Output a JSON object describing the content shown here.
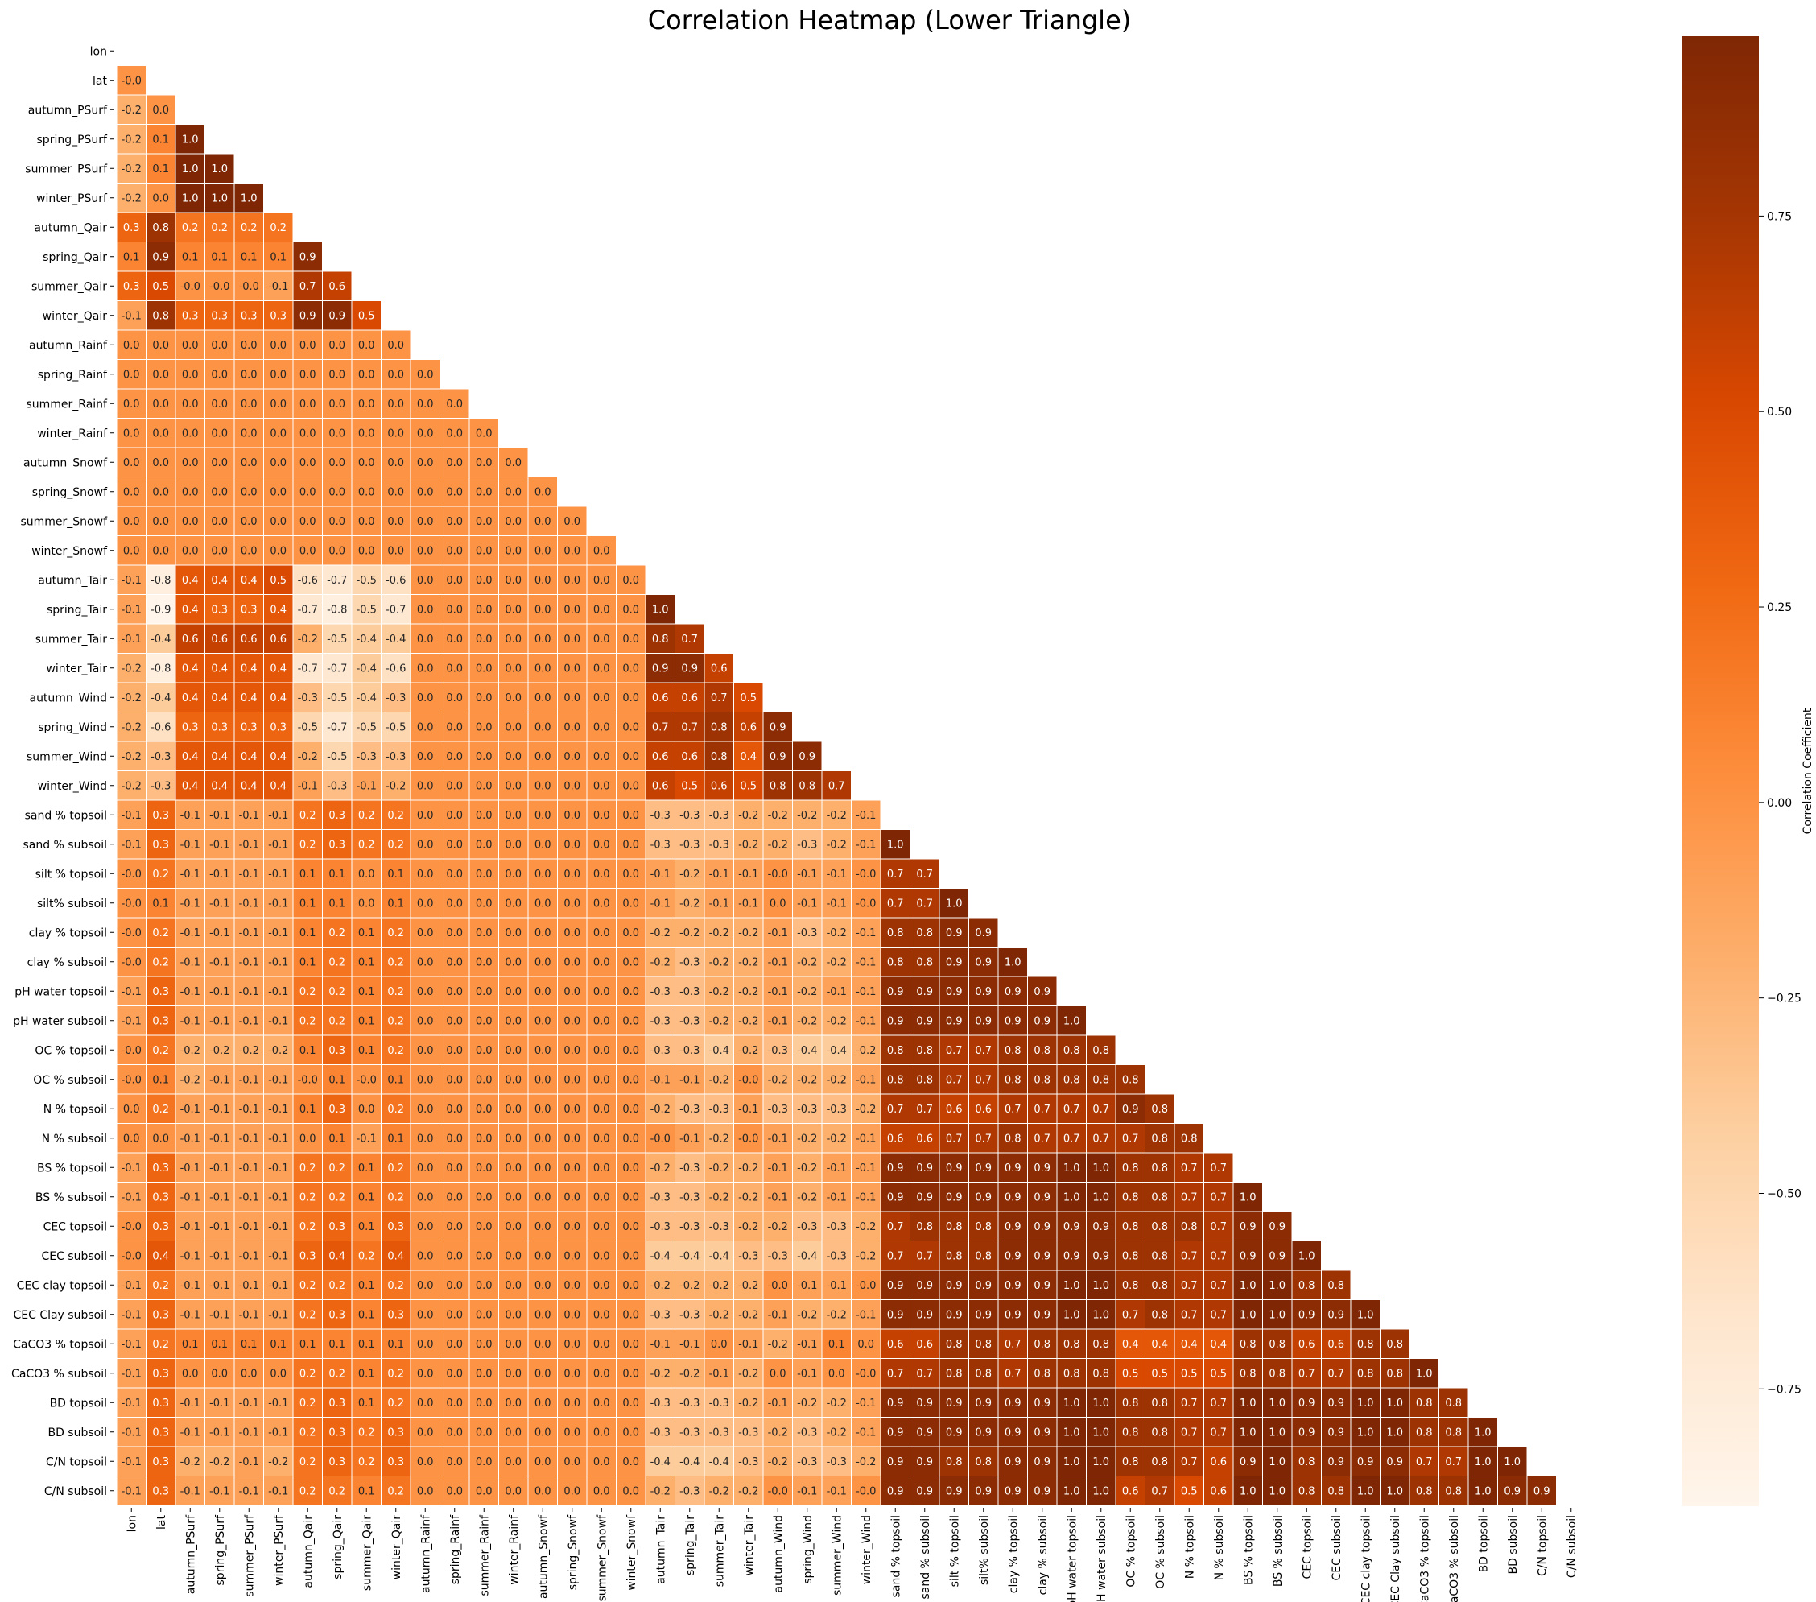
{
  "chart_data": {
    "type": "heatmap",
    "title": "Correlation Heatmap (Lower Triangle)",
    "colorbar_label": "Correlation Coefficient",
    "colorbar_ticks": [
      0.75,
      0.5,
      0.25,
      0.0,
      -0.25,
      -0.5,
      -0.75
    ],
    "colorbar_tick_labels": [
      "0.75",
      "0.50",
      "0.25",
      "0.00",
      "−0.25",
      "−0.50",
      "−0.75"
    ],
    "value_range": [
      -0.9,
      0.98
    ],
    "colormap": "Oranges",
    "mask": "upper triangle including diagonal",
    "grid_line_color": "#ffffff",
    "labels": [
      "lon",
      "lat",
      "autumn_PSurf",
      "spring_PSurf",
      "summer_PSurf",
      "winter_PSurf",
      "autumn_Qair",
      "spring_Qair",
      "summer_Qair",
      "winter_Qair",
      "autumn_Rainf",
      "spring_Rainf",
      "summer_Rainf",
      "winter_Rainf",
      "autumn_Snowf",
      "spring_Snowf",
      "summer_Snowf",
      "winter_Snowf",
      "autumn_Tair",
      "spring_Tair",
      "summer_Tair",
      "winter_Tair",
      "autumn_Wind",
      "spring_Wind",
      "summer_Wind",
      "winter_Wind",
      "sand % topsoil",
      "sand % subsoil",
      "silt % topsoil",
      "silt% subsoil",
      "clay % topsoil",
      "clay % subsoil",
      "pH water topsoil",
      "pH water subsoil",
      "OC % topsoil",
      "OC % subsoil",
      "N % topsoil",
      "N % subsoil",
      "BS % topsoil",
      "BS % subsoil",
      "CEC topsoil",
      "CEC subsoil",
      "CEC clay topsoil",
      "CEC Clay subsoil",
      "CaCO3 % topsoil",
      "CaCO3 % subsoil",
      "BD topsoil",
      "BD subsoil",
      "C/N topsoil",
      "C/N subsoil"
    ],
    "rows": [
      [],
      [
        -0.0
      ],
      [
        -0.2,
        0.0
      ],
      [
        -0.2,
        0.1,
        1.0
      ],
      [
        -0.2,
        0.1,
        1.0,
        1.0
      ],
      [
        -0.2,
        0.0,
        1.0,
        1.0,
        1.0
      ],
      [
        0.3,
        0.8,
        0.2,
        0.2,
        0.2,
        0.2
      ],
      [
        0.1,
        0.9,
        0.1,
        0.1,
        0.1,
        0.1,
        0.9
      ],
      [
        0.3,
        0.5,
        -0.0,
        -0.0,
        -0.0,
        -0.1,
        0.7,
        0.6
      ],
      [
        -0.1,
        0.8,
        0.3,
        0.3,
        0.3,
        0.3,
        0.9,
        0.9,
        0.5
      ],
      [
        0.0,
        0.0,
        0.0,
        0.0,
        0.0,
        0.0,
        0.0,
        0.0,
        0.0,
        0.0
      ],
      [
        0.0,
        0.0,
        0.0,
        0.0,
        0.0,
        0.0,
        0.0,
        0.0,
        0.0,
        0.0,
        0.0
      ],
      [
        0.0,
        0.0,
        0.0,
        0.0,
        0.0,
        0.0,
        0.0,
        0.0,
        0.0,
        0.0,
        0.0,
        0.0
      ],
      [
        0.0,
        0.0,
        0.0,
        0.0,
        0.0,
        0.0,
        0.0,
        0.0,
        0.0,
        0.0,
        0.0,
        0.0,
        0.0
      ],
      [
        0.0,
        0.0,
        0.0,
        0.0,
        0.0,
        0.0,
        0.0,
        0.0,
        0.0,
        0.0,
        0.0,
        0.0,
        0.0,
        0.0
      ],
      [
        0.0,
        0.0,
        0.0,
        0.0,
        0.0,
        0.0,
        0.0,
        0.0,
        0.0,
        0.0,
        0.0,
        0.0,
        0.0,
        0.0,
        0.0
      ],
      [
        0.0,
        0.0,
        0.0,
        0.0,
        0.0,
        0.0,
        0.0,
        0.0,
        0.0,
        0.0,
        0.0,
        0.0,
        0.0,
        0.0,
        0.0,
        0.0
      ],
      [
        0.0,
        0.0,
        0.0,
        0.0,
        0.0,
        0.0,
        0.0,
        0.0,
        0.0,
        0.0,
        0.0,
        0.0,
        0.0,
        0.0,
        0.0,
        0.0,
        0.0
      ],
      [
        -0.1,
        -0.8,
        0.4,
        0.4,
        0.4,
        0.5,
        -0.6,
        -0.7,
        -0.5,
        -0.6,
        0.0,
        0.0,
        0.0,
        0.0,
        0.0,
        0.0,
        0.0,
        0.0
      ],
      [
        -0.1,
        -0.9,
        0.4,
        0.3,
        0.3,
        0.4,
        -0.7,
        -0.8,
        -0.5,
        -0.7,
        0.0,
        0.0,
        0.0,
        0.0,
        0.0,
        0.0,
        0.0,
        0.0,
        1.0
      ],
      [
        -0.1,
        -0.4,
        0.6,
        0.6,
        0.6,
        0.6,
        -0.2,
        -0.5,
        -0.4,
        -0.4,
        0.0,
        0.0,
        0.0,
        0.0,
        0.0,
        0.0,
        0.0,
        0.0,
        0.8,
        0.7
      ],
      [
        -0.2,
        -0.8,
        0.4,
        0.4,
        0.4,
        0.4,
        -0.7,
        -0.7,
        -0.4,
        -0.6,
        0.0,
        0.0,
        0.0,
        0.0,
        0.0,
        0.0,
        0.0,
        0.0,
        0.9,
        0.9,
        0.6
      ],
      [
        -0.2,
        -0.4,
        0.4,
        0.4,
        0.4,
        0.4,
        -0.3,
        -0.5,
        -0.4,
        -0.3,
        0.0,
        0.0,
        0.0,
        0.0,
        0.0,
        0.0,
        0.0,
        0.0,
        0.6,
        0.6,
        0.7,
        0.5
      ],
      [
        -0.2,
        -0.6,
        0.3,
        0.3,
        0.3,
        0.3,
        -0.5,
        -0.7,
        -0.5,
        -0.5,
        0.0,
        0.0,
        0.0,
        0.0,
        0.0,
        0.0,
        0.0,
        0.0,
        0.7,
        0.7,
        0.8,
        0.6,
        0.9
      ],
      [
        -0.2,
        -0.3,
        0.4,
        0.4,
        0.4,
        0.4,
        -0.2,
        -0.5,
        -0.3,
        -0.3,
        0.0,
        0.0,
        0.0,
        0.0,
        0.0,
        0.0,
        0.0,
        0.0,
        0.6,
        0.6,
        0.8,
        0.4,
        0.9,
        0.9
      ],
      [
        -0.2,
        -0.3,
        0.4,
        0.4,
        0.4,
        0.4,
        -0.1,
        -0.3,
        -0.1,
        -0.2,
        0.0,
        0.0,
        0.0,
        0.0,
        0.0,
        0.0,
        0.0,
        0.0,
        0.6,
        0.5,
        0.6,
        0.5,
        0.8,
        0.8,
        0.7
      ],
      [
        -0.1,
        0.3,
        -0.1,
        -0.1,
        -0.1,
        -0.1,
        0.2,
        0.3,
        0.2,
        0.2,
        0.0,
        0.0,
        0.0,
        0.0,
        0.0,
        0.0,
        0.0,
        0.0,
        -0.3,
        -0.3,
        -0.3,
        -0.2,
        -0.2,
        -0.2,
        -0.2,
        -0.1
      ],
      [
        -0.1,
        0.3,
        -0.1,
        -0.1,
        -0.1,
        -0.1,
        0.2,
        0.3,
        0.2,
        0.2,
        0.0,
        0.0,
        0.0,
        0.0,
        0.0,
        0.0,
        0.0,
        0.0,
        -0.3,
        -0.3,
        -0.3,
        -0.2,
        -0.2,
        -0.3,
        -0.2,
        -0.1,
        1.0
      ],
      [
        -0.0,
        0.2,
        -0.1,
        -0.1,
        -0.1,
        -0.1,
        0.1,
        0.1,
        0.0,
        0.1,
        0.0,
        0.0,
        0.0,
        0.0,
        0.0,
        0.0,
        0.0,
        0.0,
        -0.1,
        -0.2,
        -0.1,
        -0.1,
        -0.0,
        -0.1,
        -0.1,
        -0.0,
        0.7,
        0.7
      ],
      [
        -0.0,
        0.1,
        -0.1,
        -0.1,
        -0.1,
        -0.1,
        0.1,
        0.1,
        0.0,
        0.1,
        0.0,
        0.0,
        0.0,
        0.0,
        0.0,
        0.0,
        0.0,
        0.0,
        -0.1,
        -0.2,
        -0.1,
        -0.1,
        0.0,
        -0.1,
        -0.1,
        -0.0,
        0.7,
        0.7,
        1.0
      ],
      [
        -0.0,
        0.2,
        -0.1,
        -0.1,
        -0.1,
        -0.1,
        0.1,
        0.2,
        0.1,
        0.2,
        0.0,
        0.0,
        0.0,
        0.0,
        0.0,
        0.0,
        0.0,
        0.0,
        -0.2,
        -0.2,
        -0.2,
        -0.2,
        -0.1,
        -0.3,
        -0.2,
        -0.1,
        0.8,
        0.8,
        0.9,
        0.9
      ],
      [
        -0.0,
        0.2,
        -0.1,
        -0.1,
        -0.1,
        -0.1,
        0.1,
        0.2,
        0.1,
        0.2,
        0.0,
        0.0,
        0.0,
        0.0,
        0.0,
        0.0,
        0.0,
        0.0,
        -0.2,
        -0.3,
        -0.2,
        -0.2,
        -0.1,
        -0.2,
        -0.2,
        -0.1,
        0.8,
        0.8,
        0.9,
        0.9,
        1.0
      ],
      [
        -0.1,
        0.3,
        -0.1,
        -0.1,
        -0.1,
        -0.1,
        0.2,
        0.2,
        0.1,
        0.2,
        0.0,
        0.0,
        0.0,
        0.0,
        0.0,
        0.0,
        0.0,
        0.0,
        -0.3,
        -0.3,
        -0.2,
        -0.2,
        -0.1,
        -0.2,
        -0.1,
        -0.1,
        0.9,
        0.9,
        0.9,
        0.9,
        0.9,
        0.9
      ],
      [
        -0.1,
        0.3,
        -0.1,
        -0.1,
        -0.1,
        -0.1,
        0.2,
        0.2,
        0.1,
        0.2,
        0.0,
        0.0,
        0.0,
        0.0,
        0.0,
        0.0,
        0.0,
        0.0,
        -0.3,
        -0.3,
        -0.2,
        -0.2,
        -0.1,
        -0.2,
        -0.2,
        -0.1,
        0.9,
        0.9,
        0.9,
        0.9,
        0.9,
        0.9,
        1.0
      ],
      [
        -0.0,
        0.2,
        -0.2,
        -0.2,
        -0.2,
        -0.2,
        0.1,
        0.3,
        0.1,
        0.2,
        0.0,
        0.0,
        0.0,
        0.0,
        0.0,
        0.0,
        0.0,
        0.0,
        -0.3,
        -0.3,
        -0.4,
        -0.2,
        -0.3,
        -0.4,
        -0.4,
        -0.2,
        0.8,
        0.8,
        0.7,
        0.7,
        0.8,
        0.8,
        0.8,
        0.8
      ],
      [
        -0.0,
        0.1,
        -0.2,
        -0.1,
        -0.1,
        -0.1,
        -0.0,
        0.1,
        -0.0,
        0.1,
        0.0,
        0.0,
        0.0,
        0.0,
        0.0,
        0.0,
        0.0,
        0.0,
        -0.1,
        -0.1,
        -0.2,
        -0.0,
        -0.2,
        -0.2,
        -0.2,
        -0.1,
        0.8,
        0.8,
        0.7,
        0.7,
        0.8,
        0.8,
        0.8,
        0.8,
        0.8
      ],
      [
        0.0,
        0.2,
        -0.1,
        -0.1,
        -0.1,
        -0.1,
        0.1,
        0.3,
        0.0,
        0.2,
        0.0,
        0.0,
        0.0,
        0.0,
        0.0,
        0.0,
        0.0,
        0.0,
        -0.2,
        -0.3,
        -0.3,
        -0.1,
        -0.3,
        -0.3,
        -0.3,
        -0.2,
        0.7,
        0.7,
        0.6,
        0.6,
        0.7,
        0.7,
        0.7,
        0.7,
        0.9,
        0.8
      ],
      [
        0.0,
        0.0,
        -0.1,
        -0.1,
        -0.1,
        -0.1,
        0.0,
        0.1,
        -0.1,
        0.1,
        0.0,
        0.0,
        0.0,
        0.0,
        0.0,
        0.0,
        0.0,
        0.0,
        -0.0,
        -0.1,
        -0.2,
        -0.0,
        -0.1,
        -0.2,
        -0.2,
        -0.1,
        0.6,
        0.6,
        0.7,
        0.7,
        0.8,
        0.7,
        0.7,
        0.7,
        0.7,
        0.8,
        0.8
      ],
      [
        -0.1,
        0.3,
        -0.1,
        -0.1,
        -0.1,
        -0.1,
        0.2,
        0.2,
        0.1,
        0.2,
        0.0,
        0.0,
        0.0,
        0.0,
        0.0,
        0.0,
        0.0,
        0.0,
        -0.2,
        -0.3,
        -0.2,
        -0.2,
        -0.1,
        -0.2,
        -0.1,
        -0.1,
        0.9,
        0.9,
        0.9,
        0.9,
        0.9,
        0.9,
        1.0,
        1.0,
        0.8,
        0.8,
        0.7,
        0.7
      ],
      [
        -0.1,
        0.3,
        -0.1,
        -0.1,
        -0.1,
        -0.1,
        0.2,
        0.2,
        0.1,
        0.2,
        0.0,
        0.0,
        0.0,
        0.0,
        0.0,
        0.0,
        0.0,
        0.0,
        -0.3,
        -0.3,
        -0.2,
        -0.2,
        -0.1,
        -0.2,
        -0.1,
        -0.1,
        0.9,
        0.9,
        0.9,
        0.9,
        0.9,
        0.9,
        1.0,
        1.0,
        0.8,
        0.8,
        0.7,
        0.7,
        1.0
      ],
      [
        -0.0,
        0.3,
        -0.1,
        -0.1,
        -0.1,
        -0.1,
        0.2,
        0.3,
        0.1,
        0.3,
        0.0,
        0.0,
        0.0,
        0.0,
        0.0,
        0.0,
        0.0,
        0.0,
        -0.3,
        -0.3,
        -0.3,
        -0.2,
        -0.2,
        -0.3,
        -0.3,
        -0.2,
        0.7,
        0.8,
        0.8,
        0.8,
        0.9,
        0.9,
        0.9,
        0.9,
        0.8,
        0.8,
        0.8,
        0.7,
        0.9,
        0.9
      ],
      [
        -0.0,
        0.4,
        -0.1,
        -0.1,
        -0.1,
        -0.1,
        0.3,
        0.4,
        0.2,
        0.4,
        0.0,
        0.0,
        0.0,
        0.0,
        0.0,
        0.0,
        0.0,
        0.0,
        -0.4,
        -0.4,
        -0.4,
        -0.3,
        -0.3,
        -0.4,
        -0.3,
        -0.2,
        0.7,
        0.7,
        0.8,
        0.8,
        0.9,
        0.9,
        0.9,
        0.9,
        0.8,
        0.8,
        0.7,
        0.7,
        0.9,
        0.9,
        1.0
      ],
      [
        -0.1,
        0.2,
        -0.1,
        -0.1,
        -0.1,
        -0.1,
        0.2,
        0.2,
        0.1,
        0.2,
        0.0,
        0.0,
        0.0,
        0.0,
        0.0,
        0.0,
        0.0,
        0.0,
        -0.2,
        -0.2,
        -0.2,
        -0.2,
        -0.0,
        -0.1,
        -0.1,
        -0.0,
        0.9,
        0.9,
        0.9,
        0.9,
        0.9,
        0.9,
        1.0,
        1.0,
        0.8,
        0.8,
        0.7,
        0.7,
        1.0,
        1.0,
        0.8,
        0.8
      ],
      [
        -0.1,
        0.3,
        -0.1,
        -0.1,
        -0.1,
        -0.1,
        0.2,
        0.3,
        0.1,
        0.3,
        0.0,
        0.0,
        0.0,
        0.0,
        0.0,
        0.0,
        0.0,
        0.0,
        -0.3,
        -0.3,
        -0.2,
        -0.2,
        -0.1,
        -0.2,
        -0.2,
        -0.1,
        0.9,
        0.9,
        0.9,
        0.9,
        0.9,
        0.9,
        1.0,
        1.0,
        0.7,
        0.8,
        0.7,
        0.7,
        1.0,
        1.0,
        0.9,
        0.9,
        1.0
      ],
      [
        -0.1,
        0.2,
        0.1,
        0.1,
        0.1,
        0.1,
        0.1,
        0.1,
        0.1,
        0.1,
        0.0,
        0.0,
        0.0,
        0.0,
        0.0,
        0.0,
        0.0,
        0.0,
        -0.1,
        -0.1,
        0.0,
        -0.1,
        -0.2,
        -0.1,
        0.1,
        0.0,
        0.6,
        0.6,
        0.8,
        0.8,
        0.7,
        0.8,
        0.8,
        0.8,
        0.4,
        0.4,
        0.4,
        0.4,
        0.8,
        0.8,
        0.6,
        0.6,
        0.8,
        0.8
      ],
      [
        -0.1,
        0.3,
        0.0,
        0.0,
        0.0,
        0.0,
        0.2,
        0.2,
        0.1,
        0.2,
        0.0,
        0.0,
        0.0,
        0.0,
        0.0,
        0.0,
        0.0,
        0.0,
        -0.2,
        -0.2,
        -0.1,
        -0.2,
        0.0,
        -0.1,
        0.0,
        -0.0,
        0.7,
        0.7,
        0.8,
        0.8,
        0.7,
        0.8,
        0.8,
        0.8,
        0.5,
        0.5,
        0.5,
        0.5,
        0.8,
        0.8,
        0.7,
        0.7,
        0.8,
        0.8,
        1.0
      ],
      [
        -0.1,
        0.3,
        -0.1,
        -0.1,
        -0.1,
        -0.1,
        0.2,
        0.3,
        0.1,
        0.2,
        0.0,
        0.0,
        0.0,
        0.0,
        0.0,
        0.0,
        0.0,
        0.0,
        -0.3,
        -0.3,
        -0.3,
        -0.2,
        -0.1,
        -0.2,
        -0.2,
        -0.1,
        0.9,
        0.9,
        0.9,
        0.9,
        0.9,
        0.9,
        1.0,
        1.0,
        0.8,
        0.8,
        0.7,
        0.7,
        1.0,
        1.0,
        0.9,
        0.9,
        1.0,
        1.0,
        0.8,
        0.8
      ],
      [
        -0.1,
        0.3,
        -0.1,
        -0.1,
        -0.1,
        -0.1,
        0.2,
        0.3,
        0.2,
        0.3,
        0.0,
        0.0,
        0.0,
        0.0,
        0.0,
        0.0,
        0.0,
        0.0,
        -0.3,
        -0.3,
        -0.3,
        -0.3,
        -0.2,
        -0.3,
        -0.2,
        -0.1,
        0.9,
        0.9,
        0.9,
        0.9,
        0.9,
        0.9,
        1.0,
        1.0,
        0.8,
        0.8,
        0.7,
        0.7,
        1.0,
        1.0,
        0.9,
        0.9,
        1.0,
        1.0,
        0.8,
        0.8,
        1.0
      ],
      [
        -0.1,
        0.3,
        -0.2,
        -0.2,
        -0.1,
        -0.2,
        0.2,
        0.3,
        0.2,
        0.3,
        0.0,
        0.0,
        0.0,
        0.0,
        0.0,
        0.0,
        0.0,
        0.0,
        -0.4,
        -0.4,
        -0.4,
        -0.3,
        -0.2,
        -0.3,
        -0.3,
        -0.2,
        0.9,
        0.9,
        0.8,
        0.8,
        0.9,
        0.9,
        1.0,
        1.0,
        0.8,
        0.8,
        0.7,
        0.6,
        0.9,
        1.0,
        0.8,
        0.9,
        0.9,
        0.9,
        0.7,
        0.7,
        1.0,
        1.0
      ],
      [
        -0.1,
        0.3,
        -0.1,
        -0.1,
        -0.1,
        -0.1,
        0.2,
        0.2,
        0.1,
        0.2,
        0.0,
        0.0,
        0.0,
        0.0,
        0.0,
        0.0,
        0.0,
        0.0,
        -0.2,
        -0.3,
        -0.2,
        -0.2,
        -0.0,
        -0.1,
        -0.1,
        -0.0,
        0.9,
        0.9,
        0.9,
        0.9,
        0.9,
        0.9,
        1.0,
        1.0,
        0.6,
        0.7,
        0.5,
        0.6,
        1.0,
        1.0,
        0.8,
        0.8,
        1.0,
        1.0,
        0.8,
        0.8,
        1.0,
        0.9,
        0.9
      ]
    ]
  }
}
